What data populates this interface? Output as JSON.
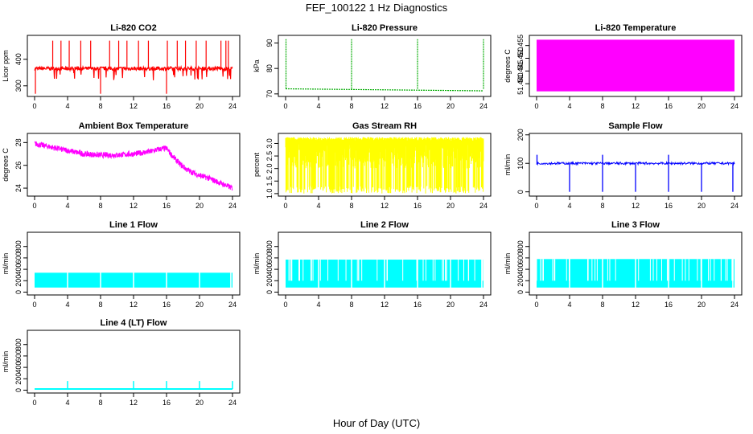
{
  "title": "FEF_100122  1 Hz Diagnostics",
  "xlabel": "Hour of Day (UTC)",
  "x_ticks": [
    0,
    4,
    8,
    12,
    16,
    20,
    24
  ],
  "chart_data": [
    {
      "type": "line",
      "title": "Li-820 CO2",
      "ylabel": "Licor ppm",
      "color": "#ff0000",
      "xlim": [
        0,
        24
      ],
      "ylim": [
        260,
        490
      ],
      "y_ticks": [
        300,
        400
      ],
      "series": [
        {
          "baseline": 365,
          "noise": 7,
          "spikes_up": [
            2.2,
            3.2,
            4.2,
            5.6,
            6.8,
            9.1,
            10.2,
            11.2,
            12.6,
            13.8,
            16.1,
            17.3,
            18.3,
            19.6,
            20.8,
            22.6,
            23.2,
            23.5
          ],
          "spike_up_to": 470,
          "spikes_down": [
            0.1,
            8.0,
            16.0
          ],
          "spike_down_to": 270
        }
      ]
    },
    {
      "type": "line",
      "title": "Li-820 Pressure",
      "ylabel": "kPa",
      "color": "#00aa00",
      "xlim": [
        0,
        24
      ],
      "ylim": [
        69,
        93
      ],
      "y_ticks": [
        70,
        80,
        90
      ],
      "series": [
        {
          "baseline": 72,
          "end_value": 71.2,
          "spikes": [
            0.05,
            8.0,
            16.0,
            24.0
          ],
          "spike_to": 91.5
        }
      ]
    },
    {
      "type": "area",
      "title": "Li-820 Temperature",
      "ylabel": "degrees C",
      "color": "#ff00ff",
      "xlim": [
        0,
        24
      ],
      "ylim": [
        51.435,
        51.459
      ],
      "y_ticks": [
        51.44,
        51.445,
        51.45,
        51.455
      ],
      "y_tick_labels": [
        "51.440",
        "51.445",
        "51.450",
        "51.455"
      ],
      "series": [
        {
          "fill_from": 51.437,
          "fill_to": 51.4573
        }
      ]
    },
    {
      "type": "line",
      "title": "Ambient Box Temperature",
      "ylabel": "degrees C",
      "color": "#ff00ff",
      "xlim": [
        0,
        24
      ],
      "ylim": [
        23.3,
        28.8
      ],
      "y_ticks": [
        24,
        26,
        28
      ],
      "series": [
        {
          "x": [
            0,
            2,
            4,
            6,
            8,
            10,
            12,
            14,
            15,
            16,
            16.5,
            17.5,
            18.5,
            20,
            21,
            22,
            23,
            24
          ],
          "y": [
            27.9,
            27.6,
            27.3,
            27.0,
            26.9,
            26.9,
            27.0,
            27.2,
            27.4,
            27.5,
            27.0,
            26.2,
            25.6,
            25.1,
            24.9,
            24.6,
            24.3,
            24.0
          ],
          "noise": 0.25
        }
      ]
    },
    {
      "type": "line",
      "title": "Gas Stream RH",
      "ylabel": "percent",
      "color": "#ffff00",
      "xlim": [
        0,
        24
      ],
      "ylim": [
        0.9,
        3.4
      ],
      "y_ticks": [
        1.0,
        1.5,
        2.0,
        2.5,
        3.0
      ],
      "y_tick_labels": [
        "1.0",
        "1.5",
        "2.0",
        "2.5",
        "3.0"
      ],
      "series": [
        {
          "band_top": 3.25,
          "band_bottom": 1.0
        }
      ]
    },
    {
      "type": "line",
      "title": "Sample Flow",
      "ylabel": "ml/min",
      "color": "#0000ff",
      "xlim": [
        0,
        24
      ],
      "ylim": [
        -15,
        205
      ],
      "y_ticks": [
        0,
        100,
        200
      ],
      "series": [
        {
          "baseline": 100,
          "spikes_down": [
            4.0,
            8.0,
            12.0,
            16.0,
            20.0,
            23.8
          ],
          "spike_down_to": 0,
          "spikes_up": [
            0.05,
            8.0,
            16.0
          ],
          "spike_up_to": 130
        }
      ]
    },
    {
      "type": "area",
      "title": "Line 1 Flow",
      "ylabel": "ml/min",
      "color": "#00ffff",
      "xlim": [
        0,
        24
      ],
      "ylim": [
        -50,
        1050
      ],
      "y_ticks": [
        0,
        200,
        400,
        600,
        800
      ],
      "series": [
        {
          "band_top": 340,
          "band_bottom": 80,
          "gaps": [
            4.0,
            8.0,
            12.0,
            16.0,
            20.0,
            23.8
          ]
        }
      ]
    },
    {
      "type": "area",
      "title": "Line 2 Flow",
      "ylabel": "ml/min",
      "color": "#00ffff",
      "xlim": [
        0,
        24
      ],
      "ylim": [
        -50,
        1050
      ],
      "y_ticks": [
        0,
        200,
        400,
        600,
        800
      ],
      "series": [
        {
          "band_top": 570,
          "band_bottom": 80,
          "gaps": [
            4.0,
            8.0,
            12.0,
            16.0,
            20.0,
            23.8
          ]
        }
      ]
    },
    {
      "type": "area",
      "title": "Line 3 Flow",
      "ylabel": "ml/min",
      "color": "#00ffff",
      "xlim": [
        0,
        24
      ],
      "ylim": [
        -50,
        1050
      ],
      "y_ticks": [
        0,
        200,
        400,
        600,
        800
      ],
      "series": [
        {
          "band_top": 580,
          "band_bottom": 80,
          "gaps": [
            4.0,
            8.0,
            12.0,
            16.0,
            20.0,
            23.8
          ]
        }
      ]
    },
    {
      "type": "line",
      "title": "Line 4 (LT) Flow",
      "ylabel": "ml/min",
      "color": "#00ffff",
      "xlim": [
        0,
        24
      ],
      "ylim": [
        -50,
        1050
      ],
      "y_ticks": [
        0,
        200,
        400,
        600,
        800
      ],
      "series": [
        {
          "baseline": 20,
          "spikes": [
            4.0,
            12.0,
            16.0,
            20.0,
            24.0
          ],
          "spike_to": 160
        }
      ]
    }
  ]
}
